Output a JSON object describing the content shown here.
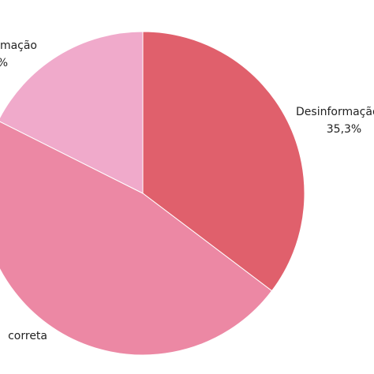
{
  "chart_data": {
    "type": "pie",
    "categories": [
      "Desinformação",
      "correta",
      "mação"
    ],
    "values": [
      35.3,
      47.1,
      17.6
    ],
    "value_labels": [
      "35,3%",
      null,
      "%"
    ],
    "colors": [
      "#e0606c",
      "#ec88a4",
      "#f0aacb"
    ]
  }
}
